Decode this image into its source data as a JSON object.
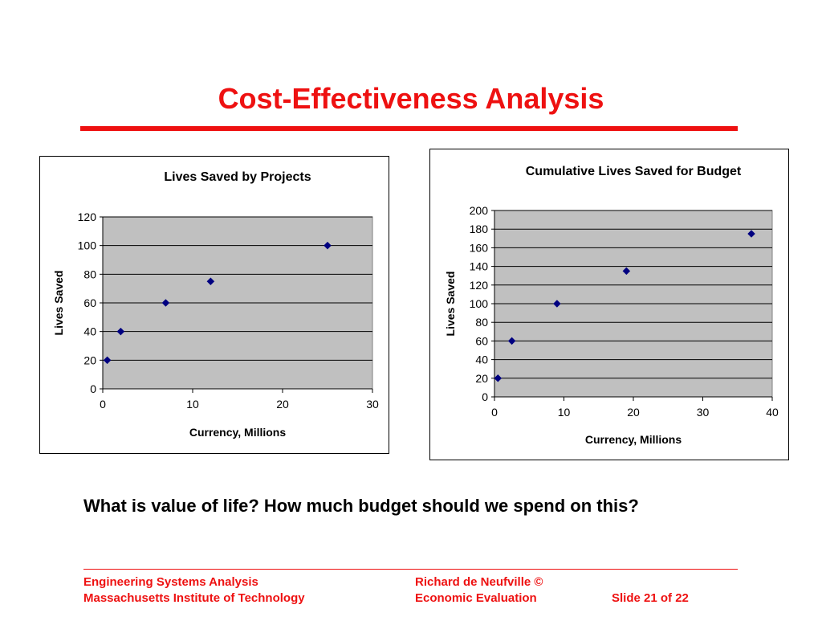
{
  "slide": {
    "title": "Cost-Effectiveness Analysis",
    "question": "What is value of life?  How much budget should we spend on this?"
  },
  "footer": {
    "left_line1": "Engineering Systems Analysis",
    "left_line2": "Massachusetts Institute of Technology",
    "center_line1": "Richard de Neufville  ©",
    "center_line2": "Economic Evaluation",
    "right": "Slide 21 of 22"
  },
  "colors": {
    "accent": "#ee1111",
    "plot_area": "#c0c0c0",
    "marker": "#000080"
  },
  "chart_data": [
    {
      "type": "scatter",
      "title": "Lives Saved by Projects",
      "xlabel": "Currency, Millions",
      "ylabel": "Lives Saved",
      "xlim": [
        0,
        30
      ],
      "ylim": [
        0,
        120
      ],
      "xticks": [
        0,
        10,
        20,
        30
      ],
      "yticks": [
        0,
        20,
        40,
        60,
        80,
        100,
        120
      ],
      "grid": "horizontal",
      "legend": "none",
      "x": [
        0.5,
        2,
        7,
        12,
        25
      ],
      "y": [
        20,
        40,
        60,
        75,
        100
      ]
    },
    {
      "type": "scatter",
      "title": "Cumulative Lives Saved for Budget",
      "xlabel": "Currency, Millions",
      "ylabel": "Lives Saved",
      "xlim": [
        0,
        40
      ],
      "ylim": [
        0,
        200
      ],
      "xticks": [
        0,
        10,
        20,
        30,
        40
      ],
      "yticks": [
        0,
        20,
        40,
        60,
        80,
        100,
        120,
        140,
        160,
        180,
        200
      ],
      "grid": "horizontal",
      "legend": "none",
      "x": [
        0.5,
        2.5,
        9,
        19,
        37
      ],
      "y": [
        20,
        60,
        100,
        135,
        175
      ]
    }
  ]
}
